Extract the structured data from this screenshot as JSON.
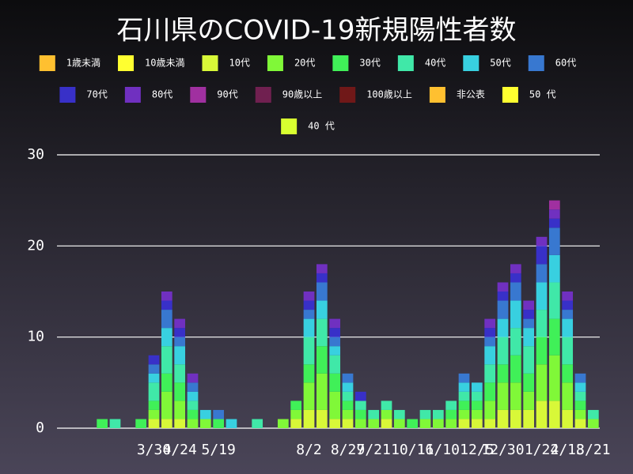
{
  "chart_data": {
    "type": "bar",
    "stacked": true,
    "title": "石川県のCOVID-19新規陽性者数",
    "categories": [
      null,
      null,
      null,
      null,
      null,
      null,
      null,
      "3/30",
      null,
      "4/24",
      null,
      null,
      "5/19",
      null,
      null,
      null,
      null,
      null,
      null,
      "8/2",
      null,
      null,
      "8/27",
      null,
      "9/21",
      null,
      null,
      "10/16",
      null,
      "11/10",
      null,
      null,
      "12/5",
      null,
      "12/30",
      null,
      null,
      "1/24",
      null,
      "2/18",
      null,
      "3/21"
    ],
    "ylim": [
      0,
      30
    ],
    "yticks": [
      0,
      10,
      20,
      30
    ],
    "grid": true,
    "series": [
      {
        "name": "1歳未満",
        "color": "#ffc030",
        "values": [
          0,
          0,
          0,
          0,
          0,
          0,
          0,
          0,
          0,
          0,
          0,
          0,
          0,
          0,
          0,
          0,
          0,
          0,
          0,
          0,
          0,
          0,
          0,
          0,
          0,
          0,
          0,
          0,
          0,
          0,
          0,
          0,
          0,
          0,
          0,
          0,
          0,
          0,
          0,
          0,
          0,
          0
        ]
      },
      {
        "name": "10歳未満",
        "color": "#ffff30",
        "values": [
          0,
          0,
          0,
          0,
          0,
          0,
          0,
          0,
          0,
          0,
          0,
          0,
          0,
          0,
          0,
          0,
          0,
          0,
          0,
          0,
          0,
          0,
          0,
          0,
          0,
          0,
          0,
          0,
          0,
          0,
          0,
          0,
          0,
          0,
          0,
          0,
          0,
          0,
          0,
          0,
          0,
          0
        ]
      },
      {
        "name": "10代",
        "color": "#d8f838",
        "values": [
          0,
          0,
          0,
          0,
          0,
          0,
          0,
          1,
          1,
          1,
          0,
          0,
          0,
          0,
          0,
          0,
          0,
          0,
          1,
          2,
          2,
          1,
          1,
          0,
          0,
          1,
          0,
          0,
          0,
          0,
          0,
          1,
          1,
          1,
          2,
          2,
          2,
          3,
          3,
          2,
          1,
          0
        ]
      },
      {
        "name": "20代",
        "color": "#80f838",
        "values": [
          0,
          0,
          0,
          0,
          0,
          0,
          0,
          1,
          3,
          2,
          1,
          1,
          0,
          0,
          0,
          0,
          0,
          1,
          1,
          3,
          4,
          3,
          1,
          1,
          1,
          1,
          1,
          0,
          1,
          1,
          1,
          1,
          1,
          2,
          3,
          3,
          2,
          4,
          5,
          3,
          1,
          1
        ]
      },
      {
        "name": "30代",
        "color": "#40f058",
        "values": [
          0,
          0,
          0,
          1,
          0,
          0,
          1,
          1,
          2,
          2,
          1,
          0,
          1,
          0,
          0,
          0,
          0,
          0,
          1,
          2,
          3,
          2,
          1,
          1,
          0,
          0,
          0,
          1,
          0,
          0,
          1,
          1,
          1,
          2,
          2,
          3,
          2,
          3,
          4,
          2,
          1,
          0
        ]
      },
      {
        "name": "40代",
        "color": "#40e8a8",
        "values": [
          0,
          0,
          0,
          0,
          1,
          0,
          0,
          2,
          3,
          2,
          1,
          0,
          0,
          0,
          0,
          1,
          0,
          0,
          0,
          3,
          3,
          2,
          1,
          1,
          1,
          1,
          1,
          0,
          1,
          1,
          1,
          1,
          1,
          2,
          3,
          3,
          3,
          3,
          4,
          3,
          1,
          1
        ]
      },
      {
        "name": "50代",
        "color": "#38d0e0",
        "values": [
          0,
          0,
          0,
          0,
          0,
          0,
          0,
          1,
          2,
          2,
          1,
          1,
          0,
          1,
          0,
          0,
          0,
          0,
          0,
          2,
          2,
          1,
          1,
          0,
          0,
          0,
          0,
          0,
          0,
          0,
          0,
          1,
          1,
          2,
          2,
          3,
          2,
          3,
          3,
          2,
          1,
          0
        ]
      },
      {
        "name": "60代",
        "color": "#3878d0",
        "values": [
          0,
          0,
          0,
          0,
          0,
          0,
          0,
          1,
          2,
          1,
          1,
          0,
          1,
          0,
          0,
          0,
          0,
          0,
          0,
          1,
          2,
          1,
          1,
          0,
          0,
          0,
          0,
          0,
          0,
          0,
          0,
          1,
          0,
          1,
          2,
          2,
          1,
          2,
          3,
          1,
          1,
          0
        ]
      },
      {
        "name": "70代",
        "color": "#3830c8",
        "values": [
          0,
          0,
          0,
          0,
          0,
          0,
          0,
          1,
          1,
          1,
          0,
          0,
          0,
          0,
          0,
          0,
          0,
          0,
          0,
          1,
          1,
          1,
          0,
          1,
          0,
          0,
          0,
          0,
          0,
          0,
          0,
          0,
          0,
          1,
          1,
          1,
          1,
          2,
          1,
          1,
          0,
          0
        ]
      },
      {
        "name": "80代",
        "color": "#7030c0",
        "values": [
          0,
          0,
          0,
          0,
          0,
          0,
          0,
          0,
          1,
          1,
          1,
          0,
          0,
          0,
          0,
          0,
          0,
          0,
          0,
          1,
          1,
          1,
          0,
          0,
          0,
          0,
          0,
          0,
          0,
          0,
          0,
          0,
          0,
          1,
          1,
          1,
          1,
          1,
          1,
          1,
          0,
          0
        ]
      },
      {
        "name": "90代",
        "color": "#a030a0",
        "values": [
          0,
          0,
          0,
          0,
          0,
          0,
          0,
          0,
          0,
          0,
          0,
          0,
          0,
          0,
          0,
          0,
          0,
          0,
          0,
          0,
          0,
          0,
          0,
          0,
          0,
          0,
          0,
          0,
          0,
          0,
          0,
          0,
          0,
          0,
          0,
          0,
          0,
          0,
          1,
          0,
          0,
          0
        ]
      },
      {
        "name": "90歳以上",
        "color": "#702050",
        "values": [
          0,
          0,
          0,
          0,
          0,
          0,
          0,
          0,
          0,
          0,
          0,
          0,
          0,
          0,
          0,
          0,
          0,
          0,
          0,
          0,
          0,
          0,
          0,
          0,
          0,
          0,
          0,
          0,
          0,
          0,
          0,
          0,
          0,
          0,
          0,
          0,
          0,
          0,
          0,
          0,
          0,
          0
        ]
      },
      {
        "name": "100歳以上",
        "color": "#701818",
        "values": [
          0,
          0,
          0,
          0,
          0,
          0,
          0,
          0,
          0,
          0,
          0,
          0,
          0,
          0,
          0,
          0,
          0,
          0,
          0,
          0,
          0,
          0,
          0,
          0,
          0,
          0,
          0,
          0,
          0,
          0,
          0,
          0,
          0,
          0,
          0,
          0,
          0,
          0,
          0,
          0,
          0,
          0
        ]
      },
      {
        "name": "非公表",
        "color": "#ffc030",
        "values": [
          0,
          0,
          0,
          0,
          0,
          0,
          0,
          0,
          0,
          0,
          0,
          0,
          0,
          0,
          0,
          0,
          0,
          0,
          0,
          0,
          0,
          0,
          0,
          0,
          0,
          0,
          0,
          0,
          0,
          0,
          0,
          0,
          0,
          0,
          0,
          0,
          0,
          0,
          0,
          0,
          0,
          0
        ]
      },
      {
        "name": "50 代",
        "color": "#ffff30",
        "values": [
          0,
          0,
          0,
          0,
          0,
          0,
          0,
          0,
          0,
          0,
          0,
          0,
          0,
          0,
          0,
          0,
          0,
          0,
          0,
          0,
          0,
          0,
          0,
          0,
          0,
          0,
          0,
          0,
          0,
          0,
          0,
          0,
          0,
          0,
          0,
          0,
          0,
          0,
          0,
          0,
          0,
          0
        ]
      },
      {
        "name": "40 代",
        "color": "#d8ff30",
        "values": [
          0,
          0,
          0,
          0,
          0,
          0,
          0,
          0,
          0,
          0,
          0,
          0,
          0,
          0,
          0,
          0,
          0,
          0,
          0,
          0,
          0,
          0,
          0,
          0,
          0,
          0,
          0,
          0,
          0,
          0,
          0,
          0,
          0,
          0,
          0,
          0,
          0,
          0,
          0,
          0,
          0,
          0
        ]
      }
    ]
  }
}
